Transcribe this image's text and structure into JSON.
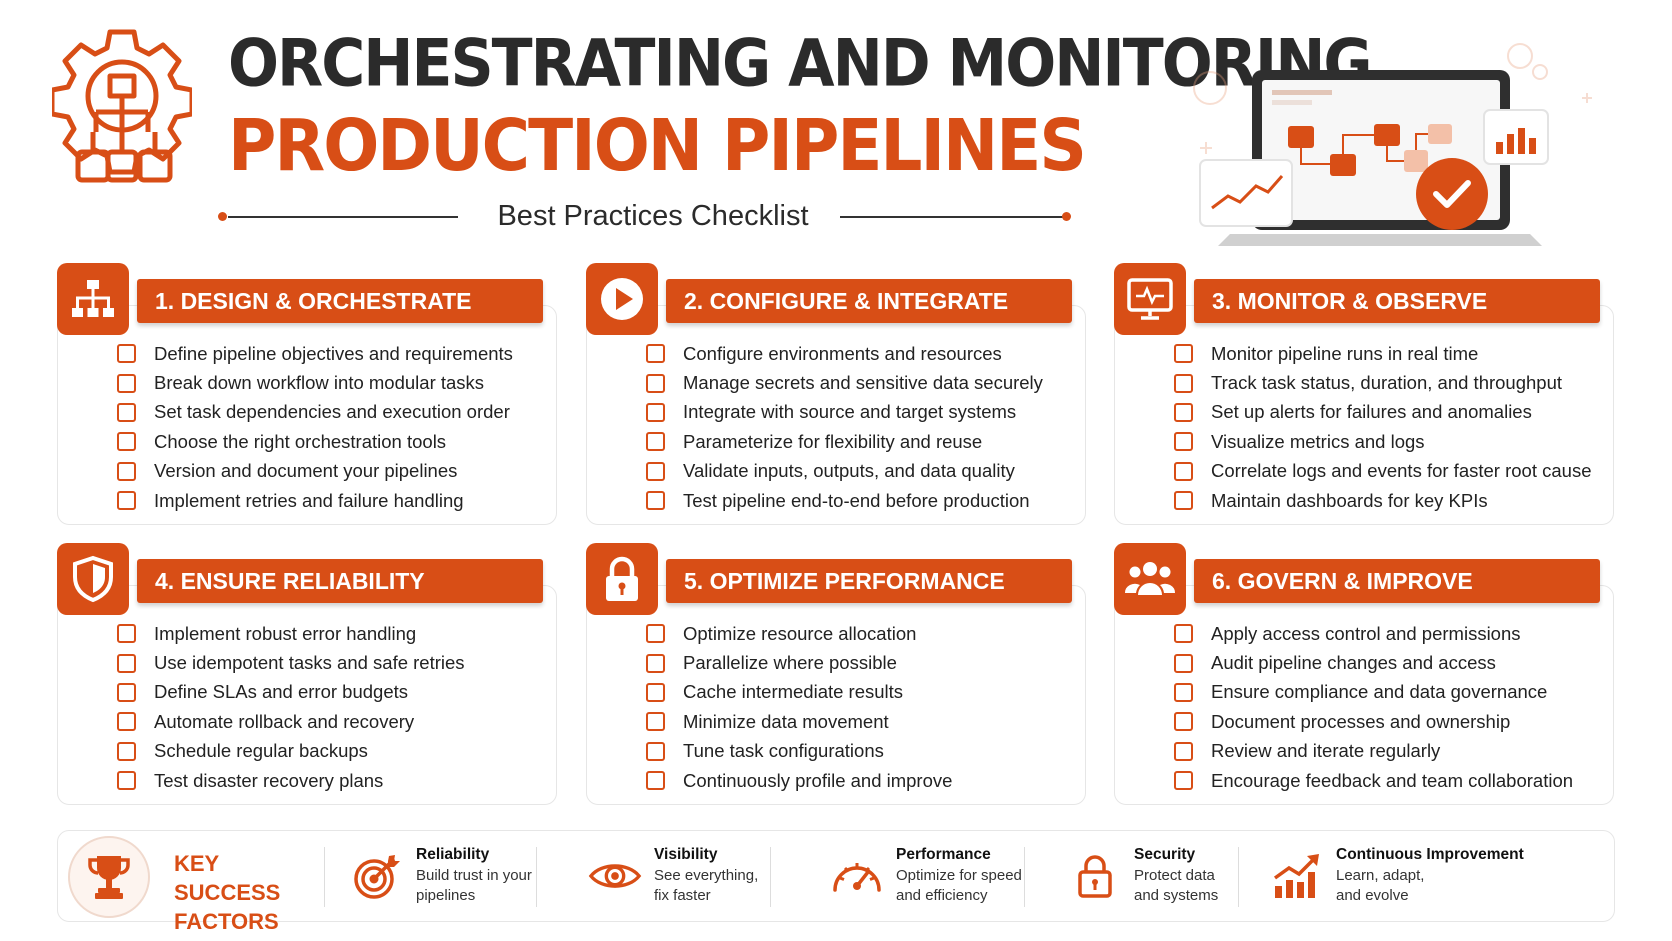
{
  "header": {
    "title_line1": "ORCHESTRATING AND MONITORING",
    "title_line2": "PRODUCTION PIPELINES",
    "subtitle": "Best Practices Checklist"
  },
  "colors": {
    "accent": "#d84e16",
    "text": "#2b2b2b",
    "border": "#e6e6e6"
  },
  "sections": [
    {
      "title": "1. DESIGN & ORCHESTRATE",
      "icon": "hierarchy-icon",
      "items": [
        "Define pipeline objectives and requirements",
        "Break down workflow into modular tasks",
        "Set task dependencies and execution order",
        "Choose the right orchestration tools",
        "Version and document your pipelines",
        "Implement retries and failure handling"
      ]
    },
    {
      "title": "2. CONFIGURE & INTEGRATE",
      "icon": "play-icon",
      "items": [
        "Configure environments and resources",
        "Manage secrets and sensitive data securely",
        "Integrate with source and target systems",
        "Parameterize for flexibility and reuse",
        "Validate inputs, outputs, and data quality",
        "Test pipeline end-to-end before production"
      ]
    },
    {
      "title": "3. MONITOR & OBSERVE",
      "icon": "monitor-icon",
      "items": [
        "Monitor pipeline runs in real time",
        "Track task status, duration, and throughput",
        "Set up alerts for failures and anomalies",
        "Visualize metrics and logs",
        "Correlate logs and events for faster root cause",
        "Maintain dashboards for key KPIs"
      ]
    },
    {
      "title": "4. ENSURE RELIABILITY",
      "icon": "shield-icon",
      "items": [
        "Implement robust error handling",
        "Use idempotent tasks and safe retries",
        "Define SLAs and error budgets",
        "Automate rollback and recovery",
        "Schedule regular backups",
        "Test disaster recovery plans"
      ]
    },
    {
      "title": "5. OPTIMIZE PERFORMANCE",
      "icon": "lock-icon",
      "items": [
        "Optimize resource allocation",
        "Parallelize where possible",
        "Cache intermediate results",
        "Minimize data movement",
        "Tune task configurations",
        "Continuously profile and improve"
      ]
    },
    {
      "title": "6. GOVERN & IMPROVE",
      "icon": "team-icon",
      "items": [
        "Apply access control and permissions",
        "Audit pipeline changes and access",
        "Ensure compliance and data governance",
        "Document processes and ownership",
        "Review and iterate regularly",
        "Encourage feedback and team collaboration"
      ]
    }
  ],
  "key_success": {
    "title": "KEY SUCCESS FACTORS",
    "factors": [
      {
        "title": "Reliability",
        "desc": "Build trust in your pipelines",
        "icon": "target-icon"
      },
      {
        "title": "Visibility",
        "desc": "See everything, fix faster",
        "icon": "eye-icon"
      },
      {
        "title": "Performance",
        "desc": "Optimize for speed and efficiency",
        "icon": "speedometer-icon"
      },
      {
        "title": "Security",
        "desc": "Protect data and systems",
        "icon": "padlock-icon"
      },
      {
        "title": "Continuous Improvement",
        "desc": "Learn, adapt, and evolve",
        "icon": "growth-chart-icon"
      }
    ]
  }
}
